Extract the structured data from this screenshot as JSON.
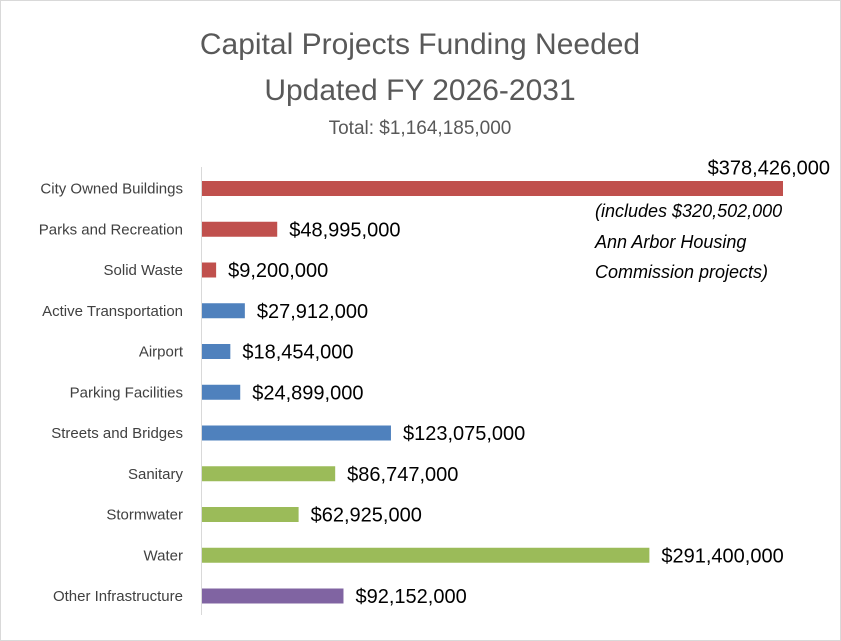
{
  "chart_data": {
    "type": "bar",
    "orientation": "horizontal",
    "title_lines": [
      "Capital Projects Funding Needed",
      "Updated FY 2026-2031"
    ],
    "subtitle": "Total: $1,164,185,000",
    "categories": [
      "City Owned Buildings",
      "Parks and Recreation",
      "Solid Waste",
      "Active Transportation",
      "Airport",
      "Parking Facilities",
      "Streets and Bridges",
      "Sanitary",
      "Stormwater",
      "Water",
      "Other Infrastructure"
    ],
    "values": [
      378426000,
      48995000,
      9200000,
      27912000,
      18454000,
      24899000,
      123075000,
      86747000,
      62925000,
      291400000,
      92152000
    ],
    "value_labels": [
      "$378,426,000",
      "$48,995,000",
      "$9,200,000",
      "$27,912,000",
      "$18,454,000",
      "$24,899,000",
      "$123,075,000",
      "$86,747,000",
      "$62,925,000",
      "$291,400,000",
      "$92,152,000"
    ],
    "bar_colors": [
      "#c0504d",
      "#c0504d",
      "#c0504d",
      "#4f81bd",
      "#4f81bd",
      "#4f81bd",
      "#4f81bd",
      "#9bbb59",
      "#9bbb59",
      "#9bbb59",
      "#8064a2"
    ],
    "annotation_lines": [
      "(includes $320,502,000",
      "Ann Arbor Housing",
      "Commission projects)"
    ],
    "xlim": [
      0,
      378426000
    ],
    "grid": false,
    "legend": "none"
  }
}
